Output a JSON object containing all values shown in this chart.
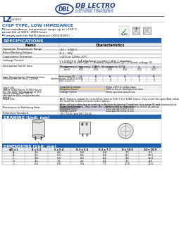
{
  "bg_color": "#ffffff",
  "header_blue": "#1e3a8c",
  "section_blue": "#1e5fad",
  "lz_color": "#1e3a8c",
  "chip_color": "#1e5fad",
  "features": [
    "Low impedance, temperature range up to +105°C",
    "Load life of 1000~2000 hours",
    "Comply with the RoHS directive (2002/95/EC)"
  ],
  "spec_title": "SPECIFICATIONS",
  "drawing_title": "DRAWING (Unit: mm)",
  "dim_title": "DIMENSIONS (Unit: mm)",
  "dim_headers": [
    "ϕD x L",
    "4 x 5.4",
    "5 x 5.4",
    "6.3 x 5.4",
    "6.3 x 7.7",
    "8 x 10.5",
    "10 x 10.5"
  ],
  "dim_rows": [
    [
      "A",
      "3.8",
      "4.6",
      "5.8",
      "5.8",
      "7.3",
      "9.3"
    ],
    [
      "B",
      "4.3",
      "5.3",
      "6.4",
      "6.4",
      "8.3",
      "10.3"
    ],
    [
      "C",
      "4.0",
      "5.0",
      "6.0",
      "6.0",
      "8.0",
      "10.0"
    ],
    [
      "D",
      "1.5",
      "1.5",
      "2.2",
      "2.2",
      "3.1",
      "4.5"
    ],
    [
      "L",
      "5.4",
      "5.4",
      "5.4",
      "7.7",
      "10.5",
      "10.5"
    ]
  ]
}
